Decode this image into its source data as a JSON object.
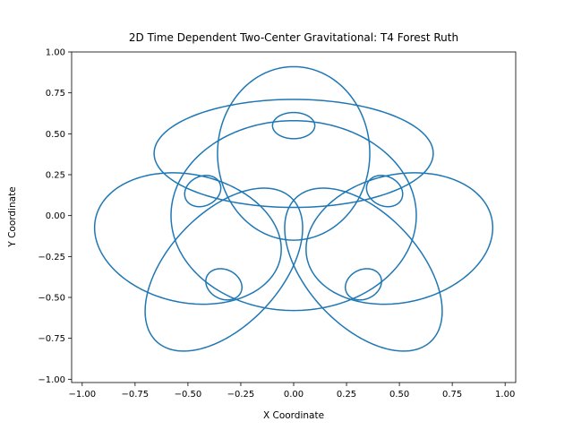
{
  "chart_data": {
    "type": "line",
    "title": "2D Time Dependent Two-Center Gravitational: T4 Forest Ruth",
    "xlabel": "X Coordinate",
    "ylabel": "Y Coordinate",
    "xlim": [
      -1.05,
      1.05
    ],
    "ylim": [
      -1.02,
      1.0
    ],
    "x_ticks": [
      -1.0,
      -0.75,
      -0.5,
      -0.25,
      0.0,
      0.25,
      0.5,
      0.75,
      1.0
    ],
    "x_tick_labels": [
      "−1.00",
      "−0.75",
      "−0.50",
      "−0.25",
      "0.00",
      "0.25",
      "0.50",
      "0.75",
      "1.00"
    ],
    "y_ticks": [
      -1.0,
      -0.75,
      -0.5,
      -0.25,
      0.0,
      0.25,
      0.5,
      0.75,
      1.0
    ],
    "y_tick_labels": [
      "−1.00",
      "−0.75",
      "−0.50",
      "−0.25",
      "0.00",
      "0.25",
      "0.50",
      "0.75",
      "1.00"
    ],
    "grid": false,
    "line_color": "#1f77b4",
    "series": [
      {
        "loops": [
          {
            "cx": 0.0,
            "cy": 0.0,
            "rx": 0.58,
            "ry": 0.58,
            "rot": 0
          },
          {
            "cx": 0.0,
            "cy": 0.38,
            "rx": 0.66,
            "ry": 0.33,
            "rot": 0
          },
          {
            "cx": 0.0,
            "cy": 0.38,
            "rx": 0.36,
            "ry": 0.53,
            "rot": 0
          },
          {
            "cx": -0.5,
            "cy": -0.14,
            "rx": 0.46,
            "ry": 0.38,
            "rot": -30
          },
          {
            "cx": 0.5,
            "cy": -0.14,
            "rx": 0.46,
            "ry": 0.38,
            "rot": 30
          },
          {
            "cx": -0.33,
            "cy": -0.33,
            "rx": 0.55,
            "ry": 0.29,
            "rot": 60
          },
          {
            "cx": 0.33,
            "cy": -0.33,
            "rx": 0.55,
            "ry": 0.29,
            "rot": -60
          },
          {
            "cx": 0.0,
            "cy": 0.55,
            "rx": 0.1,
            "ry": 0.08,
            "rot": 0
          },
          {
            "cx": -0.43,
            "cy": 0.15,
            "rx": 0.1,
            "ry": 0.08,
            "rot": 60
          },
          {
            "cx": 0.43,
            "cy": 0.15,
            "rx": 0.1,
            "ry": 0.08,
            "rot": -60
          },
          {
            "cx": -0.33,
            "cy": -0.42,
            "rx": 0.1,
            "ry": 0.08,
            "rot": -60
          },
          {
            "cx": 0.33,
            "cy": -0.42,
            "rx": 0.1,
            "ry": 0.08,
            "rot": 60
          }
        ]
      }
    ]
  }
}
